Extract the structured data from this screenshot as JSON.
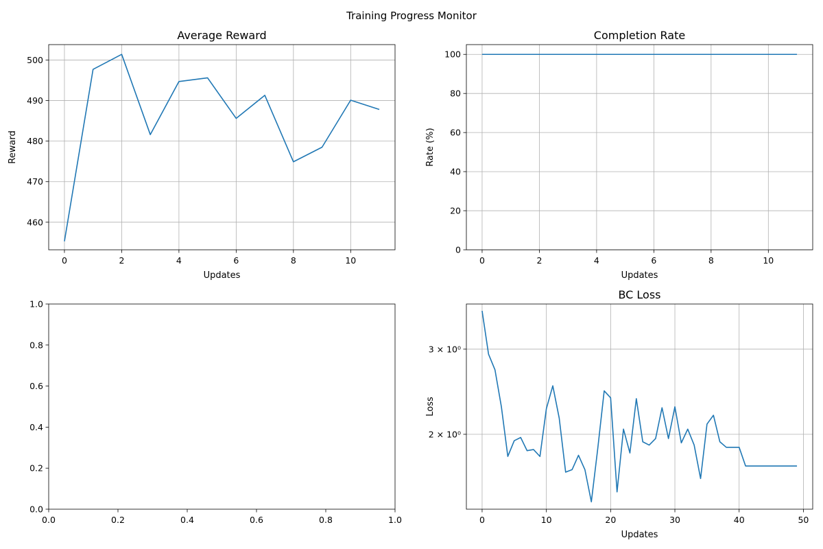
{
  "figure": {
    "suptitle": "Training Progress Monitor"
  },
  "chart_data": [
    {
      "id": "reward",
      "type": "line",
      "title": "Average Reward",
      "xlabel": "Updates",
      "ylabel": "Reward",
      "xlim": [
        -0.55,
        11.55
      ],
      "ylim": [
        453.2,
        503.8
      ],
      "yscale": "linear",
      "grid": true,
      "xticks": [
        0,
        2,
        4,
        6,
        8,
        10
      ],
      "yticks": [
        460,
        470,
        480,
        490,
        500
      ],
      "x": [
        0,
        1,
        2,
        3,
        4,
        5,
        6,
        7,
        8,
        9,
        10,
        11
      ],
      "series": [
        {
          "color": "#1f77b4",
          "values": [
            455.3,
            497.7,
            501.4,
            481.6,
            494.7,
            495.6,
            485.6,
            491.3,
            474.9,
            478.5,
            490.1,
            487.8
          ]
        }
      ]
    },
    {
      "id": "completion",
      "type": "line",
      "title": "Completion Rate",
      "xlabel": "Updates",
      "ylabel": "Rate (%)",
      "xlim": [
        -0.55,
        11.55
      ],
      "ylim": [
        0,
        105
      ],
      "yscale": "linear",
      "grid": true,
      "xticks": [
        0,
        2,
        4,
        6,
        8,
        10
      ],
      "yticks": [
        0,
        20,
        40,
        60,
        80,
        100
      ],
      "x": [
        0,
        1,
        2,
        3,
        4,
        5,
        6,
        7,
        8,
        9,
        10,
        11
      ],
      "series": [
        {
          "color": "#1f77b4",
          "values": [
            100,
            100,
            100,
            100,
            100,
            100,
            100,
            100,
            100,
            100,
            100,
            100
          ]
        }
      ]
    },
    {
      "id": "empty",
      "type": "line",
      "title": "",
      "xlabel": "",
      "ylabel": "",
      "xlim": [
        0,
        1
      ],
      "ylim": [
        0,
        1
      ],
      "yscale": "linear",
      "grid": false,
      "xticks": [
        0,
        0.2,
        0.4,
        0.6,
        0.8,
        1.0
      ],
      "yticks": [
        0,
        0.2,
        0.4,
        0.6,
        0.8,
        1.0
      ],
      "tick_format": 1,
      "x": [],
      "series": []
    },
    {
      "id": "bcloss",
      "type": "line",
      "title": "BC Loss",
      "xlabel": "Updates",
      "ylabel": "Loss",
      "xlim": [
        -2.45,
        51.45
      ],
      "ylim": [
        1.4,
        3.72
      ],
      "yscale": "log",
      "grid": true,
      "xticks": [
        0,
        10,
        20,
        30,
        40,
        50
      ],
      "yticks": [
        2,
        3
      ],
      "ytick_labels": [
        "2 × 10⁰",
        "3 × 10⁰"
      ],
      "x": [
        0,
        1,
        2,
        3,
        4,
        5,
        6,
        7,
        8,
        9,
        10,
        11,
        12,
        13,
        14,
        15,
        16,
        17,
        18,
        19,
        20,
        21,
        22,
        23,
        24,
        25,
        26,
        27,
        28,
        29,
        30,
        31,
        32,
        33,
        34,
        35,
        36,
        37,
        38,
        39,
        40,
        41,
        42,
        43,
        44,
        45,
        46,
        47,
        48,
        49
      ],
      "series": [
        {
          "color": "#1f77b4",
          "values": [
            3.6,
            2.93,
            2.72,
            2.28,
            1.8,
            1.94,
            1.97,
            1.85,
            1.86,
            1.8,
            2.26,
            2.52,
            2.16,
            1.67,
            1.69,
            1.81,
            1.69,
            1.45,
            1.87,
            2.46,
            2.38,
            1.52,
            2.05,
            1.83,
            2.37,
            1.93,
            1.9,
            1.96,
            2.27,
            1.96,
            2.28,
            1.92,
            2.05,
            1.9,
            1.62,
            2.1,
            2.19,
            1.93,
            1.88,
            1.88,
            1.88,
            1.72,
            1.72,
            1.72,
            1.72,
            1.72,
            1.72,
            1.72,
            1.72,
            1.72
          ]
        }
      ]
    }
  ]
}
